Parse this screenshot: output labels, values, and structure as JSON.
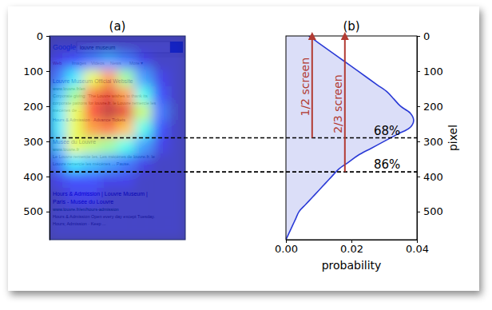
{
  "chart_data": [
    {
      "type": "heatmap",
      "title": "(a)",
      "xlim": [
        0,
        384
      ],
      "ylim": [
        0,
        580
      ],
      "yticks": [
        0,
        100,
        200,
        300,
        400,
        500
      ],
      "tick_labels": "y",
      "xbins": [
        0,
        48,
        96,
        144,
        192,
        240,
        288,
        336,
        384
      ],
      "ybins": [
        0,
        48,
        96,
        144,
        192,
        240,
        288,
        336,
        384,
        432,
        480,
        528,
        580
      ],
      "values": [
        [
          0.05,
          0.05,
          0.05,
          0.05,
          0.05,
          0.05,
          0.05,
          0.05
        ],
        [
          0.1,
          0.15,
          0.2,
          0.25,
          0.2,
          0.1,
          0.05,
          0.05
        ],
        [
          0.2,
          0.35,
          0.6,
          0.75,
          0.5,
          0.25,
          0.1,
          0.05
        ],
        [
          0.3,
          0.5,
          0.8,
          0.9,
          0.75,
          0.4,
          0.15,
          0.05
        ],
        [
          0.35,
          0.6,
          0.85,
          0.95,
          0.9,
          0.55,
          0.2,
          0.05
        ],
        [
          0.35,
          0.6,
          0.75,
          0.8,
          0.7,
          0.4,
          0.15,
          0.05
        ],
        [
          0.3,
          0.6,
          0.55,
          0.5,
          0.4,
          0.25,
          0.1,
          0.05
        ],
        [
          0.2,
          0.35,
          0.3,
          0.25,
          0.2,
          0.1,
          0.05,
          0.05
        ],
        [
          0.1,
          0.15,
          0.15,
          0.1,
          0.1,
          0.05,
          0.05,
          0.05
        ],
        [
          0.05,
          0.1,
          0.1,
          0.05,
          0.05,
          0.05,
          0.05,
          0.05
        ],
        [
          0.05,
          0.05,
          0.05,
          0.05,
          0.05,
          0.05,
          0.05,
          0.05
        ],
        [
          0.05,
          0.05,
          0.05,
          0.05,
          0.05,
          0.05,
          0.05,
          0.05
        ]
      ],
      "zlim": [
        0,
        1
      ],
      "screenshot": {
        "logo": "Google",
        "query": "louvre museum",
        "tabs": [
          "Web",
          "Images",
          "Videos",
          "News",
          "More ▾"
        ],
        "results": [
          {
            "title": [
              "Louvre Museum Official Website"
            ],
            "url": "www.louvre.fr/en",
            "snippet": [
              "Corporate giving: 'The Louvre wishes to thank its",
              "corporate patrons for louvre.fr. le Louvre remercie les",
              "mécènes de ..."
            ],
            "links": "Hours & Admission · Advance Tickets"
          },
          {
            "title": [
              "Musée du Louvre"
            ],
            "url": "www.louvre.fr",
            "snippet": [
              "Le Louvre remercie les. Les mécènes de louvre.fr. le",
              "Louvre remercie les mécènes ... Pause."
            ]
          },
          {
            "title": [
              "Hours & Admission | Louvre Museum |",
              "Paris - Musée du Louvre"
            ],
            "url": "www.louvre.fr/en/hours-admission",
            "snippet": [
              "Hours & Admission Open every day except Tuesday.",
              "Hours; Admission · Keep ..."
            ]
          }
        ]
      }
    },
    {
      "type": "area",
      "title": "(b)",
      "orientation": "horizontal",
      "xlabel": "pixel",
      "ylabel": "probability",
      "color": "#2a3ad6",
      "x": [
        0,
        20,
        40,
        60,
        80,
        100,
        120,
        140,
        160,
        180,
        200,
        220,
        240,
        260,
        280,
        300,
        320,
        340,
        360,
        380,
        400,
        420,
        440,
        460,
        480,
        500,
        520,
        540,
        560,
        580
      ],
      "values": [
        0.007,
        0.01,
        0.013,
        0.016,
        0.019,
        0.022,
        0.025,
        0.028,
        0.031,
        0.033,
        0.035,
        0.038,
        0.039,
        0.038,
        0.034,
        0.03,
        0.026,
        0.022,
        0.019,
        0.016,
        0.014,
        0.012,
        0.01,
        0.008,
        0.006,
        0.004,
        0.003,
        0.002,
        0.001,
        0.0
      ],
      "xlim": [
        0,
        580
      ],
      "xticks": [
        0,
        100,
        200,
        300,
        400,
        500
      ],
      "ylim": [
        0,
        0.04
      ],
      "yticks": [
        {
          "value": 0,
          "label": "0.00"
        },
        {
          "value": 0.02,
          "label": "0.02"
        },
        {
          "value": 0.04,
          "label": "0.04"
        }
      ],
      "annotations": [
        {
          "x": 290,
          "text": "68%",
          "arrow_text": "1/2 screen"
        },
        {
          "x": 387,
          "text": "86%",
          "arrow_text": "2/3 screen"
        }
      ]
    }
  ]
}
